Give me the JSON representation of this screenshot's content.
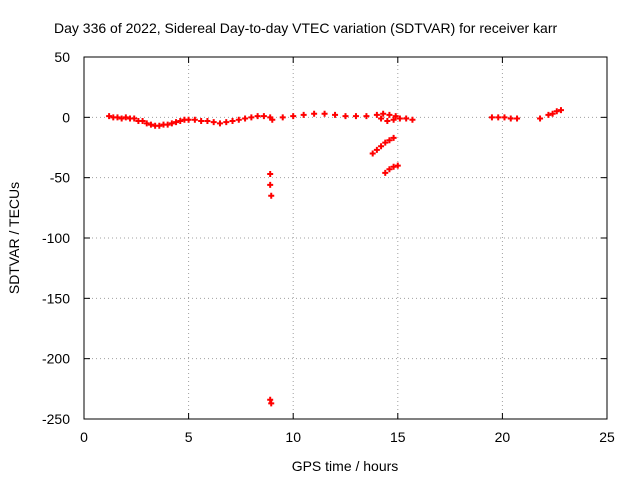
{
  "chart_data": {
    "type": "scatter",
    "title": "Day 336 of 2022, Sidereal Day-to-day VTEC variation (SDTVAR) for receiver karr",
    "xlabel": "GPS time / hours",
    "ylabel": "SDTVAR / TECUs",
    "xlim": [
      0,
      25
    ],
    "ylim": [
      -250,
      50
    ],
    "xticks": [
      0,
      5,
      10,
      15,
      20,
      25
    ],
    "yticks": [
      -250,
      -200,
      -150,
      -100,
      -50,
      0,
      50
    ],
    "grid": true,
    "marker": "plus",
    "series": [
      {
        "color": "#ff0000",
        "x": [
          1.2,
          1.4,
          1.6,
          1.8,
          2.0,
          2.2,
          2.4,
          2.6,
          2.8,
          3.0,
          3.2,
          3.4,
          3.6,
          3.8,
          4.0,
          4.2,
          4.4,
          4.6,
          4.8,
          5.0,
          5.3,
          5.6,
          5.9,
          6.2,
          6.5,
          6.8,
          7.1,
          7.4,
          7.7,
          8.0,
          8.3,
          8.6,
          8.9,
          9.0,
          9.5,
          10.0,
          10.5,
          11.0,
          11.5,
          12.0,
          12.5,
          13.0,
          13.5,
          14.0,
          14.3,
          14.6,
          14.9,
          14.2,
          14.5,
          14.8,
          15.1,
          15.4,
          15.7,
          13.8,
          14.0,
          14.2,
          14.4,
          14.6,
          14.8,
          14.4,
          14.6,
          14.8,
          15.0,
          8.9,
          8.9,
          8.95,
          8.9,
          8.95,
          19.5,
          19.8,
          20.1,
          20.4,
          20.7,
          21.8,
          22.2,
          22.4,
          22.6,
          22.8
        ],
        "y": [
          1,
          0,
          0,
          -1,
          0,
          -1,
          -1,
          -3,
          -3,
          -5,
          -6,
          -7,
          -7,
          -6,
          -6,
          -5,
          -4,
          -3,
          -2,
          -2,
          -2,
          -3,
          -3,
          -4,
          -5,
          -4,
          -3,
          -2,
          -1,
          0,
          1,
          1,
          0,
          -2,
          0,
          1,
          2,
          3,
          3,
          2,
          1,
          1,
          1,
          2,
          3,
          2,
          1,
          -1,
          -3,
          -2,
          -1,
          -1,
          -2,
          -30,
          -27,
          -24,
          -21,
          -19,
          -17,
          -46,
          -43,
          -41,
          -40,
          -47,
          -56,
          -65,
          -234,
          -237,
          0,
          0,
          0,
          -1,
          -1,
          -1,
          2,
          3,
          5,
          6
        ]
      }
    ]
  }
}
